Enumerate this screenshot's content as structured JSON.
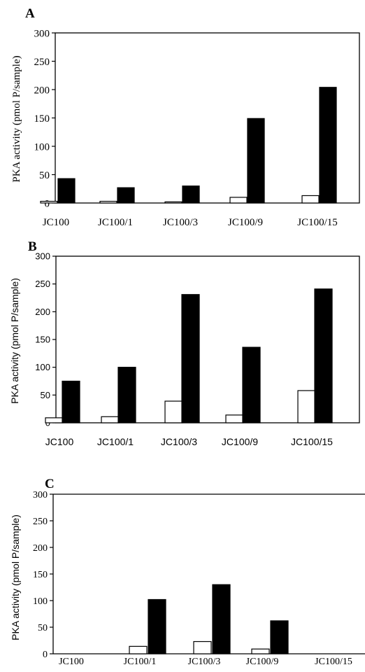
{
  "chart_data": [
    {
      "type": "bar",
      "panel_label": "A",
      "categories": [
        "JC100",
        "JC100/1",
        "JC100/3",
        "JC100/9",
        "JC100/15"
      ],
      "series": [
        {
          "values": [
            3,
            3,
            2,
            10,
            13
          ],
          "fill": "#ffffff"
        },
        {
          "values": [
            43,
            27,
            30,
            149,
            204
          ],
          "fill": "#000000"
        }
      ],
      "ylabel": "PKA activity (pmol P/sample)",
      "yticks": [
        "0",
        "50",
        "100",
        "150",
        "200",
        "250",
        "300"
      ],
      "ylim": [
        0,
        300
      ]
    },
    {
      "type": "bar",
      "panel_label": "B",
      "categories": [
        "JC100",
        "JC100/1",
        "JC100/3",
        "JC100/9",
        "JC100/15"
      ],
      "series": [
        {
          "values": [
            9,
            11,
            39,
            14,
            58
          ],
          "fill": "#ffffff"
        },
        {
          "values": [
            75,
            100,
            231,
            136,
            241
          ],
          "fill": "#000000"
        }
      ],
      "ylabel": "PKA activity (pmol P/sample)",
      "yticks": [
        "0",
        "50",
        "100",
        "150",
        "200",
        "250",
        "300"
      ],
      "ylim": [
        0,
        300
      ]
    },
    {
      "type": "bar",
      "panel_label": "C",
      "categories": [
        "JC100",
        "JC100/1",
        "JC100/3",
        "JC100/9",
        "JC100/15"
      ],
      "series": [
        {
          "values": [
            0,
            14,
            23,
            9,
            0
          ],
          "fill": "#ffffff"
        },
        {
          "values": [
            0,
            102,
            130,
            62,
            0
          ],
          "fill": "#000000"
        }
      ],
      "ylabel": "PKA activity (pmol P/sample)",
      "yticks": [
        "0",
        "50",
        "100",
        "150",
        "200",
        "250",
        "300"
      ],
      "ylim": [
        0,
        300
      ]
    }
  ]
}
